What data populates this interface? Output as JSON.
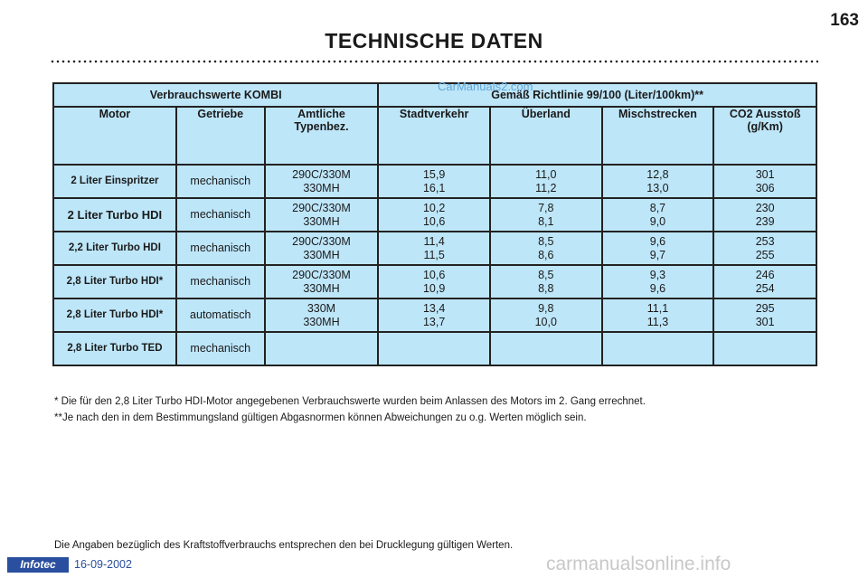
{
  "page": {
    "number": "163",
    "title": "TECHNISCHE DATEN"
  },
  "watermark_top": "CarManuals2.com",
  "table": {
    "header_left": "Verbrauchswerte KOMBI",
    "header_right": "Gemäß Richtlinie 99/100 (Liter/100km)**",
    "columns": {
      "motor": "Motor",
      "getriebe": "Getriebe",
      "amtliche_1": "Amtliche",
      "amtliche_2": "Typenbez.",
      "stadt": "Stadtverkehr",
      "ueberland": "Überland",
      "misch": "Mischstrecken",
      "co2_1": "CO2 Ausstoß",
      "co2_2": "(g/Km)"
    },
    "rows": [
      {
        "motor": "2 Liter Einspritzer",
        "getriebe": "mechanisch",
        "typ1": "290C/330M",
        "typ2": "330MH",
        "stadt1": "15,9",
        "stadt2": "16,1",
        "ueber1": "11,0",
        "ueber2": "11,2",
        "misch1": "12,8",
        "misch2": "13,0",
        "co21": "301",
        "co22": "306"
      },
      {
        "motor": "2 Liter Turbo HDI",
        "getriebe": "mechanisch",
        "typ1": "290C/330M",
        "typ2": "330MH",
        "stadt1": "10,2",
        "stadt2": "10,6",
        "ueber1": "7,8",
        "ueber2": "8,1",
        "misch1": "8,7",
        "misch2": "9,0",
        "co21": "230",
        "co22": "239"
      },
      {
        "motor": "2,2 Liter Turbo HDI",
        "getriebe": "mechanisch",
        "typ1": "290C/330M",
        "typ2": "330MH",
        "stadt1": "11,4",
        "stadt2": "11,5",
        "ueber1": "8,5",
        "ueber2": "8,6",
        "misch1": "9,6",
        "misch2": "9,7",
        "co21": "253",
        "co22": "255"
      },
      {
        "motor": "2,8 Liter Turbo HDI*",
        "getriebe": "mechanisch",
        "typ1": "290C/330M",
        "typ2": "330MH",
        "stadt1": "10,6",
        "stadt2": "10,9",
        "ueber1": "8,5",
        "ueber2": "8,8",
        "misch1": "9,3",
        "misch2": "9,6",
        "co21": "246",
        "co22": "254"
      },
      {
        "motor": "2,8 Liter Turbo HDI*",
        "getriebe": "automatisch",
        "typ1": "330M",
        "typ2": "330MH",
        "stadt1": "13,4",
        "stadt2": "13,7",
        "ueber1": "9,8",
        "ueber2": "10,0",
        "misch1": "11,1",
        "misch2": "11,3",
        "co21": "295",
        "co22": "301"
      },
      {
        "motor": "2,8 Liter Turbo TED",
        "getriebe": "mechanisch",
        "typ1": "",
        "typ2": "",
        "stadt1": "",
        "stadt2": "",
        "ueber1": "",
        "ueber2": "",
        "misch1": "",
        "misch2": "",
        "co21": "",
        "co22": ""
      }
    ]
  },
  "footnotes": {
    "fn1": "* Die für den 2,8 Liter Turbo HDI-Motor angegebenen Verbrauchswerte wurden beim Anlassen des Motors im 2. Gang errechnet.",
    "fn2": "**Je nach den in dem Bestimmungsland gültigen Abgasnormen können Abweichungen zu o.g. Werten möglich sein."
  },
  "bottom_note": "Die Angaben bezüglich des Kraftstoffverbrauchs entsprechen den bei Drucklegung gültigen Werten.",
  "footer": {
    "logo": "Infotec",
    "date": "16-09-2002",
    "watermark": "carmanualsonline.info"
  },
  "colors": {
    "table_background": "#bee6f9",
    "logo_background": "#2a4f9e"
  }
}
